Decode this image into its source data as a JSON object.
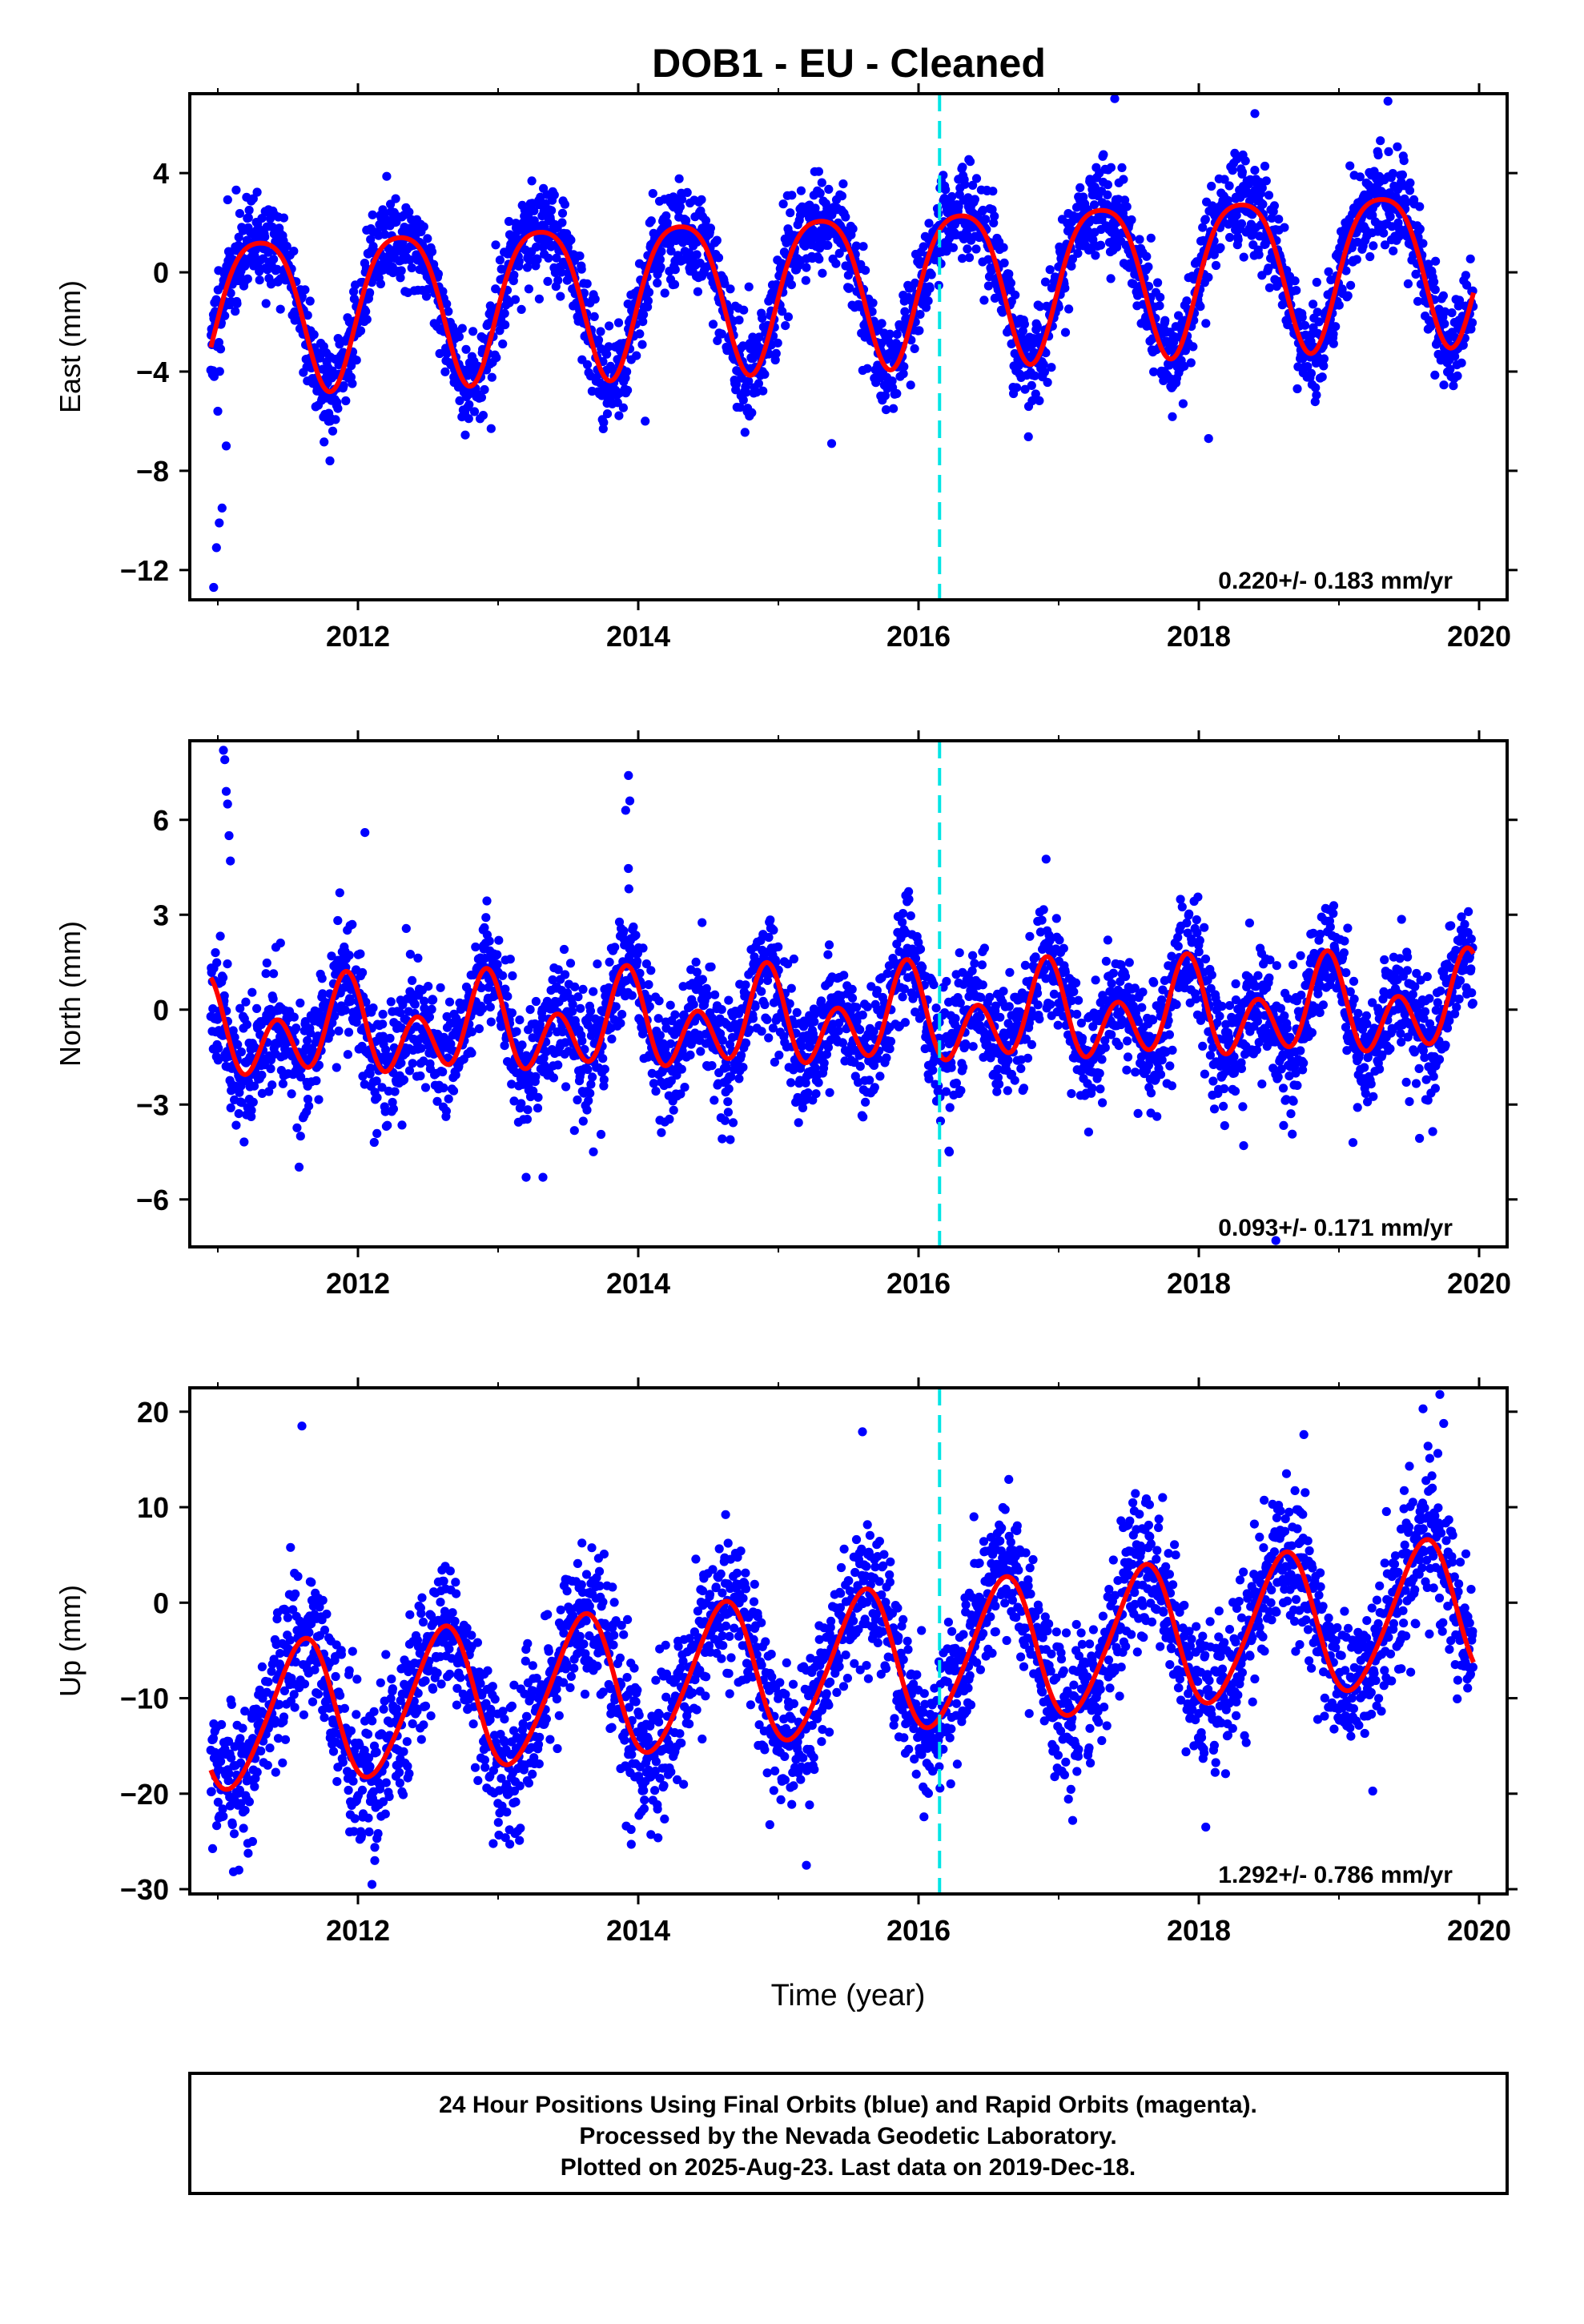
{
  "title": "DOB1  - EU - Cleaned",
  "xlabel": "Time (year)",
  "footer": {
    "line1": "24 Hour Positions Using Final Orbits (blue) and Rapid Orbits (magenta).",
    "line2": "Processed by the Nevada Geodetic Laboratory.",
    "line3": "Plotted on 2025-Aug-23. Last data on 2019-Dec-18."
  },
  "colors": {
    "data": "#0000ff",
    "model": "#ff0000",
    "event": "#00e5e5",
    "frame": "#000000"
  },
  "chart_data": [
    {
      "type": "scatter",
      "ylabel": "East (mm)",
      "xlim": [
        2010.8,
        2020.2
      ],
      "ylim": [
        -13.2,
        7.2
      ],
      "xticks": [
        2012,
        2014,
        2016,
        2018,
        2020
      ],
      "yticks": [
        -12,
        -8,
        -4,
        0,
        4
      ],
      "yticklabels": [
        "−12",
        "−8",
        "−4",
        "0",
        "4"
      ],
      "rate_label": "0.220+/- 0.183 mm/yr",
      "event_line_x": 2016.15,
      "series": [
        {
          "role": "observations",
          "style": "dots",
          "data_range": [
            2010.95,
            2019.96
          ],
          "samples_per_year": 330,
          "model": {
            "offset": -0.4,
            "rate": 0.22,
            "annual": [
              3.05,
              2011.3
            ],
            "semiannual": [
              0.55,
              2011.55
            ],
            "noise_sigma": 0.95,
            "seed": 11
          },
          "outliers": [
            [
              2010.97,
              -12.7
            ],
            [
              2010.99,
              -11.1
            ],
            [
              2011.01,
              -10.1
            ],
            [
              2011.03,
              -9.5
            ],
            [
              2011.06,
              -7.0
            ],
            [
              2011.0,
              -5.6
            ],
            [
              2011.8,
              -7.6
            ],
            [
              2015.38,
              -6.9
            ],
            [
              2014.05,
              -6.0
            ],
            [
              2018.07,
              -6.7
            ],
            [
              2012.95,
              -6.3
            ],
            [
              2018.4,
              6.4
            ],
            [
              2019.35,
              6.9
            ],
            [
              2017.4,
              7.0
            ]
          ]
        },
        {
          "role": "model",
          "style": "line",
          "model": {
            "offset": -0.4,
            "rate": 0.22,
            "annual": [
              3.05,
              2011.3
            ],
            "semiannual": [
              0.55,
              2011.55
            ]
          }
        }
      ]
    },
    {
      "type": "scatter",
      "ylabel": "North (mm)",
      "xlim": [
        2010.8,
        2020.2
      ],
      "ylim": [
        -7.5,
        8.5
      ],
      "xticks": [
        2012,
        2014,
        2016,
        2018,
        2020
      ],
      "yticks": [
        -6,
        -3,
        0,
        3,
        6
      ],
      "yticklabels": [
        "−6",
        "−3",
        "0",
        "3",
        "6"
      ],
      "rate_label": "0.093+/- 0.171 mm/yr",
      "event_line_x": 2016.15,
      "series": [
        {
          "role": "observations",
          "style": "dots",
          "data_range": [
            2010.95,
            2019.96
          ],
          "samples_per_year": 330,
          "model": {
            "offset": -0.35,
            "rate": 0.093,
            "annual": [
              0.75,
              2010.9
            ],
            "semiannual": [
              1.15,
              2011.42
            ],
            "noise_sigma": 0.95,
            "seed": 23
          },
          "outliers": [
            [
              2011.04,
              8.2
            ],
            [
              2011.05,
              7.9
            ],
            [
              2011.06,
              6.9
            ],
            [
              2011.07,
              6.5
            ],
            [
              2011.08,
              5.5
            ],
            [
              2011.09,
              4.7
            ],
            [
              2013.93,
              7.4
            ],
            [
              2013.94,
              6.6
            ],
            [
              2013.91,
              6.3
            ],
            [
              2012.05,
              5.6
            ],
            [
              2013.2,
              -5.3
            ],
            [
              2013.32,
              -5.3
            ],
            [
              2016.22,
              -4.5
            ],
            [
              2018.32,
              -4.3
            ],
            [
              2019.1,
              -4.2
            ],
            [
              2018.55,
              -7.3
            ]
          ]
        },
        {
          "role": "model",
          "style": "line",
          "model": {
            "offset": -0.35,
            "rate": 0.093,
            "annual": [
              0.75,
              2010.9
            ],
            "semiannual": [
              1.15,
              2011.42
            ]
          }
        }
      ]
    },
    {
      "type": "scatter",
      "ylabel": "Up (mm)",
      "xlim": [
        2010.8,
        2020.2
      ],
      "ylim": [
        -30.5,
        22.5
      ],
      "xticks": [
        2012,
        2014,
        2016,
        2018,
        2020
      ],
      "yticks": [
        -30,
        -20,
        -10,
        0,
        10,
        20
      ],
      "yticklabels": [
        "−30",
        "−20",
        "−10",
        "0",
        "10",
        "20"
      ],
      "rate_label": "1.292+/- 0.786 mm/yr",
      "event_line_x": 2016.15,
      "series": [
        {
          "role": "observations",
          "style": "dots",
          "data_range": [
            2010.95,
            2019.96
          ],
          "samples_per_year": 330,
          "model": {
            "offset": -6.5,
            "rate": 1.292,
            "annual": [
              7.4,
              2011.6
            ],
            "semiannual": [
              0.8,
              2011.7
            ],
            "noise_sigma": 3.8,
            "seed": 37
          },
          "outliers": [
            [
              2012.1,
              -29.5
            ],
            [
              2012.12,
              -27.0
            ],
            [
              2011.15,
              -28.0
            ],
            [
              2015.2,
              -27.5
            ],
            [
              2013.95,
              -25.3
            ],
            [
              2012.08,
              -24.0
            ],
            [
              2017.1,
              -22.8
            ],
            [
              2018.05,
              -23.5
            ],
            [
              2019.72,
              21.8
            ],
            [
              2019.6,
              20.3
            ],
            [
              2011.6,
              18.5
            ],
            [
              2015.6,
              17.9
            ],
            [
              2018.75,
              17.6
            ]
          ]
        },
        {
          "role": "model",
          "style": "line",
          "model": {
            "offset": -6.5,
            "rate": 1.292,
            "annual": [
              7.4,
              2011.6
            ],
            "semiannual": [
              0.8,
              2011.7
            ]
          }
        }
      ]
    }
  ]
}
